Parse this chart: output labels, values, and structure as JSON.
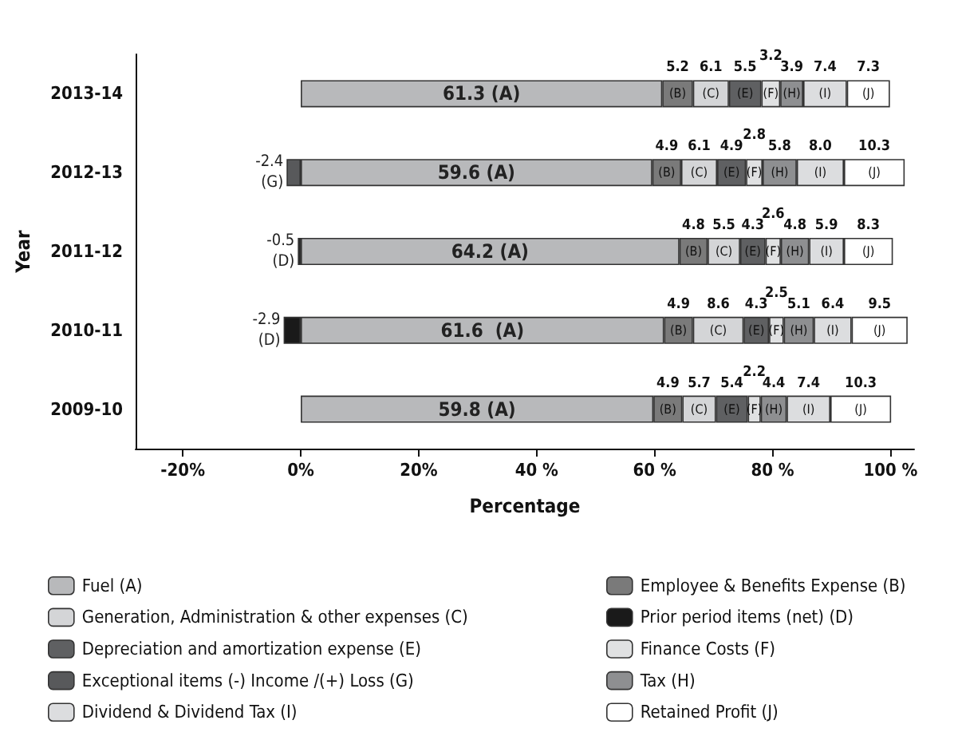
{
  "chart_data": {
    "type": "bar",
    "orientation": "horizontal",
    "stacked": true,
    "xlabel": "Percentage",
    "ylabel": "Year",
    "legend": "bottom",
    "grid": false,
    "categories": [
      "2013-14",
      "2012-13",
      "2011-12",
      "2010-11",
      "2009-10"
    ],
    "xlim": [
      -28,
      104
    ],
    "xticks": [
      {
        "value": -20,
        "label": "-20%"
      },
      {
        "value": 0,
        "label": "0%"
      },
      {
        "value": 20,
        "label": "20%"
      },
      {
        "value": 40,
        "label": "40 %"
      },
      {
        "value": 60,
        "label": "60 %"
      },
      {
        "value": 80,
        "label": "80 %"
      },
      {
        "value": 100,
        "label": "100 %"
      }
    ],
    "series": [
      {
        "name": "Fuel (A)",
        "color": "#b8b9bb",
        "values": [
          61.3,
          59.6,
          64.2,
          61.6,
          59.8
        ],
        "value_labels": [
          "61.3 (A)",
          "59.6 (A)",
          "64.2 (A)",
          "61.6  (A)",
          "59.8 (A)"
        ]
      },
      {
        "name": "Employee & Benefits Expense (B)",
        "color": "#7a7a7a",
        "values": [
          5.2,
          4.9,
          4.8,
          4.9,
          4.9
        ],
        "value_labels": [
          "5.2 (B)",
          "4.9 (B)",
          "4.8 (B)",
          "4.9 (B)",
          "4.9 (B)"
        ]
      },
      {
        "name": "Generation, Administration & other expenses (C)",
        "color": "#d4d5d7",
        "values": [
          6.1,
          6.1,
          5.5,
          8.6,
          5.7
        ],
        "value_labels": [
          "6.1 (C)",
          "6.1 (C)",
          "5.5 (C)",
          "8.6 (C)",
          "5.7 (C)"
        ]
      },
      {
        "name": "Prior period items (net) (D)",
        "color": "#1a1a1a",
        "values": [
          null,
          null,
          -0.5,
          -2.9,
          null
        ],
        "value_labels": [
          null,
          null,
          "-0.5 (D)",
          "-2.9 (D)",
          null
        ]
      },
      {
        "name": "Depreciation and amortization expense (E)",
        "color": "#5f6062",
        "values": [
          5.5,
          4.9,
          4.3,
          4.3,
          5.4
        ],
        "value_labels": [
          "5.5 (E)",
          "4.9 (E)",
          "4.3 (E)",
          "4.3 (E)",
          "5.4 (E)"
        ]
      },
      {
        "name": "Finance Costs (F)",
        "color": "#e0e1e2",
        "values": [
          3.2,
          2.8,
          2.6,
          2.5,
          2.2
        ],
        "value_labels": [
          "3.2 (F)",
          "2.8 (F)",
          "2.6 (F)",
          "2.5 (F)",
          "2.2 (F)"
        ]
      },
      {
        "name": "Exceptional items (-) Income /(+) Loss (G)",
        "color": "#58595b",
        "values": [
          null,
          -2.4,
          null,
          null,
          null
        ],
        "value_labels": [
          null,
          "-2.4 (G)",
          null,
          null,
          null
        ]
      },
      {
        "name": "Tax (H)",
        "color": "#8e8f91",
        "values": [
          3.9,
          5.8,
          4.8,
          5.1,
          4.4
        ],
        "value_labels": [
          "3.9 (H)",
          "5.8 (H)",
          "4.8 (H)",
          "5.1 (H)",
          "4.4 (H)"
        ]
      },
      {
        "name": "Dividend & Dividend Tax (I)",
        "color": "#dcdddf",
        "values": [
          7.4,
          8.0,
          5.9,
          6.4,
          7.4
        ],
        "value_labels": [
          "7.4 (I)",
          "8.0 (I)",
          "5.9 (I)",
          "6.4 (I)",
          "7.4 (I)"
        ]
      },
      {
        "name": "Retained Profit (J)",
        "color": "#ffffff",
        "values": [
          7.3,
          10.3,
          8.3,
          9.5,
          10.3
        ],
        "value_labels": [
          "7.3 (J)",
          "10.3 (J)",
          "8.3 (J)",
          "9.5 (J)",
          "10.3 (J)"
        ]
      }
    ]
  }
}
